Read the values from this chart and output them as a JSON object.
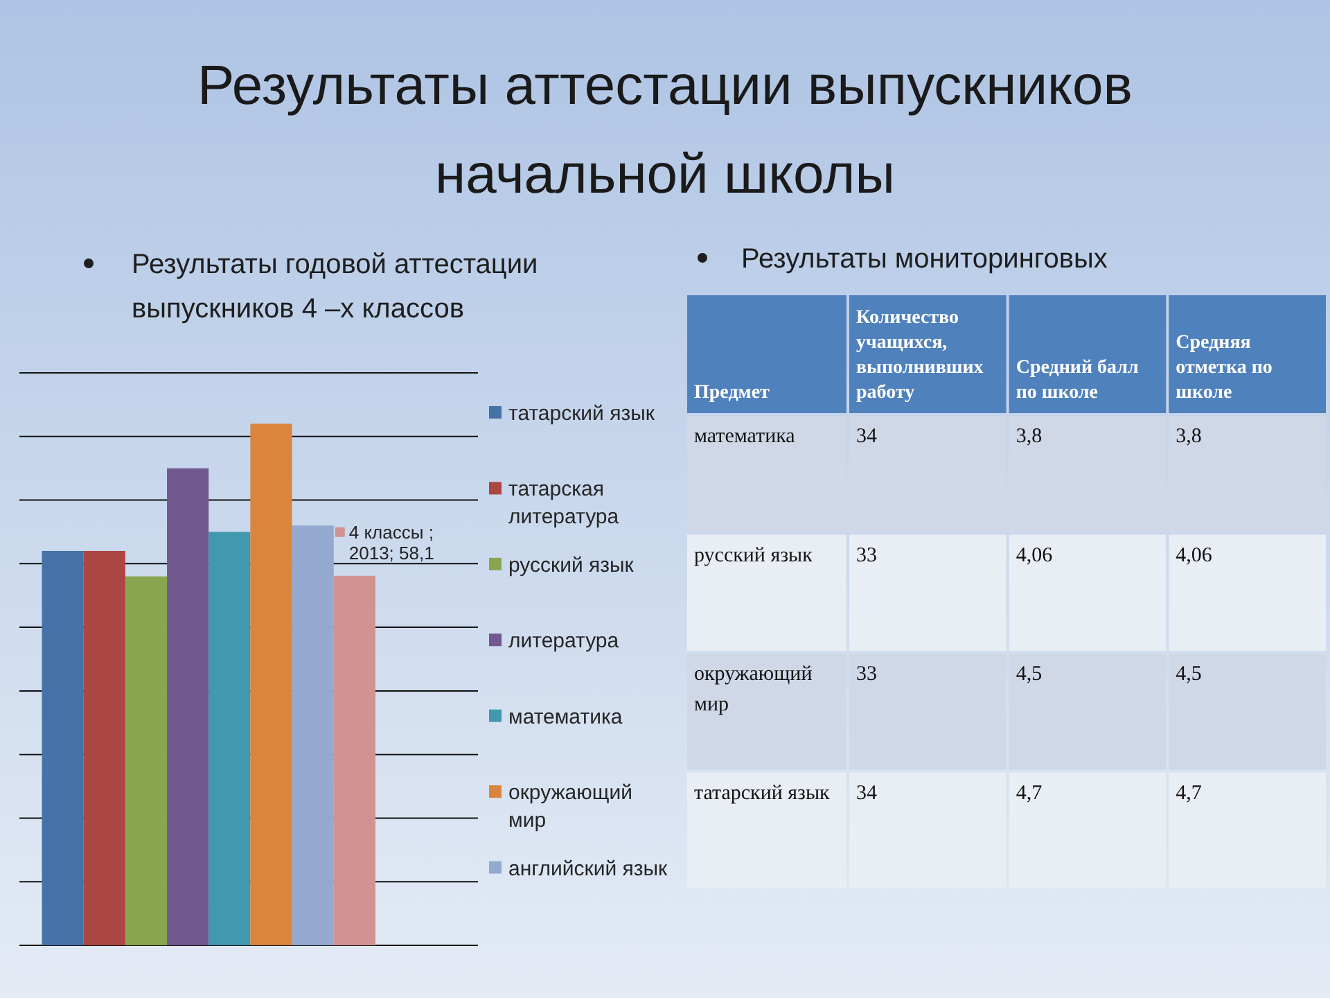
{
  "chart_data": [
    {
      "type": "bar",
      "title": "Результаты аттестации выпускников начальной школы",
      "subtitle": "Результаты годовой аттестации выпускников 4 –х классов",
      "categories": [
        null
      ],
      "series": [
        {
          "name": "татарский язык",
          "color": "#4572a7",
          "values": [
            62
          ]
        },
        {
          "name": "татарская литература",
          "color": "#aa4643",
          "values": [
            62
          ]
        },
        {
          "name": "русский язык",
          "color": "#89a54e",
          "values": [
            58
          ]
        },
        {
          "name": "литература",
          "color": "#71588f",
          "values": [
            75
          ]
        },
        {
          "name": "математика",
          "color": "#4198af",
          "values": [
            65
          ]
        },
        {
          "name": "окружающий мир",
          "color": "#db843d",
          "values": [
            82
          ]
        },
        {
          "name": "английский язык",
          "color": "#93a9cf",
          "values": [
            66
          ]
        },
        {
          "color": "#d19392",
          "values": [
            58.1
          ],
          "value_labels": [
            "4 классы ; 2013; 58,1"
          ]
        }
      ],
      "ylim": [
        0,
        90
      ],
      "yticks": [
        0,
        10,
        20,
        30,
        40,
        50,
        60,
        70,
        80,
        90
      ],
      "grid": "y",
      "tick_labels": false,
      "legend": "right"
    },
    {
      "type": "other",
      "title": "Результаты мониторинговых",
      "ylabel": "Предмет",
      "categories": [
        "математика",
        "русский язык",
        "окружающий мир",
        "татарский язык"
      ],
      "series": [
        {
          "name": "Количество учащихся, выполнивших работу",
          "colors": [
            "#d0d8e8",
            "#e9edf4",
            "#d0d8e8",
            "#e9edf4"
          ],
          "values": [
            34,
            33,
            33,
            34
          ],
          "value_labels": [
            "34",
            "33",
            "33",
            "34"
          ]
        },
        {
          "name": "Средний балл по школе",
          "colors": [
            "#d0d8e8",
            "#e9edf4",
            "#d0d8e8",
            "#e9edf4"
          ],
          "values": [
            3.8,
            4.06,
            4.5,
            4.7
          ],
          "value_labels": [
            "3,8",
            "4,06",
            "4,5",
            "4,7"
          ]
        },
        {
          "name": "Средняя отметка по школе",
          "colors": [
            "#d0d8e8",
            "#e9edf4",
            "#d0d8e8",
            "#e9edf4"
          ],
          "values": [
            3.8,
            4.06,
            4.5,
            4.7
          ],
          "value_labels": [
            "3,8",
            "4,06",
            "4,5",
            "4,7"
          ]
        }
      ]
    }
  ]
}
